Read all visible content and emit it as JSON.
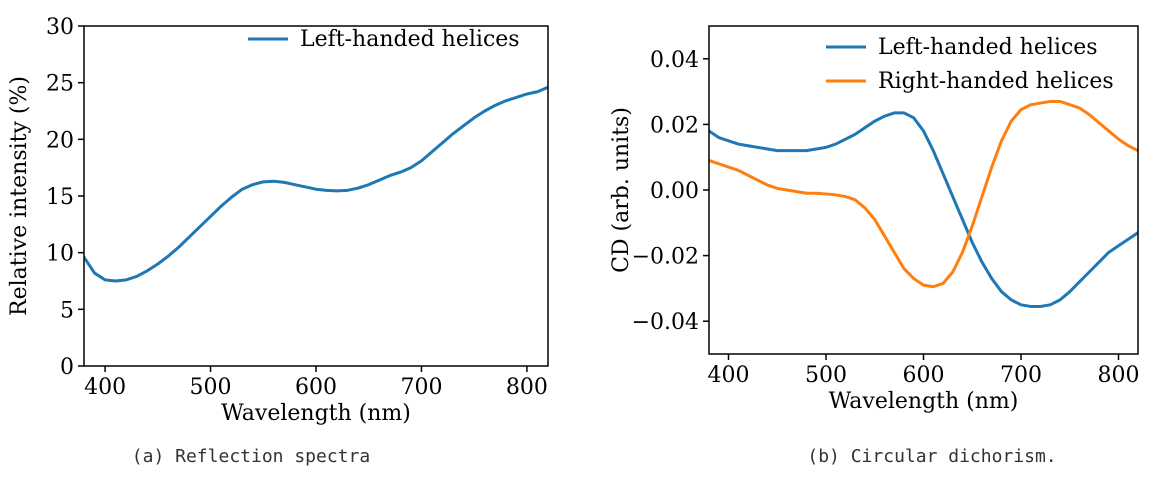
{
  "chart_data": [
    {
      "type": "line",
      "caption": "(a) Reflection spectra",
      "title": "",
      "xlabel": "Wavelength (nm)",
      "ylabel": "Relative intensity (%)",
      "xlim": [
        380,
        820
      ],
      "ylim": [
        0,
        30
      ],
      "xticks": [
        400,
        500,
        600,
        700,
        800
      ],
      "yticks": [
        0,
        5,
        10,
        15,
        20,
        25,
        30
      ],
      "ytick_labels": [
        "0",
        "5",
        "10",
        "15",
        "20",
        "25",
        "30"
      ],
      "grid": false,
      "legend_position": "top-right",
      "series": [
        {
          "name": "Left-handed helices",
          "color": "#1f77b4",
          "x": [
            380,
            390,
            400,
            410,
            420,
            430,
            440,
            450,
            460,
            470,
            480,
            490,
            500,
            510,
            520,
            530,
            540,
            550,
            560,
            570,
            580,
            590,
            600,
            610,
            620,
            630,
            640,
            650,
            660,
            670,
            680,
            690,
            700,
            710,
            720,
            730,
            740,
            750,
            760,
            770,
            780,
            790,
            800,
            810,
            820
          ],
          "y": [
            9.6,
            8.2,
            7.6,
            7.5,
            7.6,
            7.9,
            8.4,
            9.0,
            9.7,
            10.5,
            11.4,
            12.3,
            13.2,
            14.1,
            14.9,
            15.6,
            16.0,
            16.25,
            16.3,
            16.2,
            16.0,
            15.8,
            15.6,
            15.5,
            15.45,
            15.5,
            15.7,
            16.0,
            16.4,
            16.8,
            17.1,
            17.5,
            18.1,
            18.9,
            19.7,
            20.5,
            21.2,
            21.9,
            22.5,
            23.0,
            23.4,
            23.7,
            24.0,
            24.2,
            24.6
          ]
        }
      ]
    },
    {
      "type": "line",
      "caption": "(b) Circular dichorism.",
      "title": "",
      "xlabel": "Wavelength (nm)",
      "ylabel": "CD (arb. units)",
      "xlim": [
        380,
        820
      ],
      "ylim": [
        -0.05,
        0.05
      ],
      "xticks": [
        400,
        500,
        600,
        700,
        800
      ],
      "yticks": [
        -0.04,
        -0.02,
        0.0,
        0.02,
        0.04
      ],
      "ytick_labels": [
        "−0.04",
        "−0.02",
        "0.00",
        "0.02",
        "0.04"
      ],
      "grid": false,
      "legend_position": "top-right",
      "series": [
        {
          "name": "Left-handed helices",
          "color": "#1f77b4",
          "x": [
            380,
            390,
            400,
            410,
            420,
            430,
            440,
            450,
            460,
            470,
            480,
            490,
            500,
            510,
            520,
            530,
            540,
            550,
            560,
            570,
            580,
            590,
            600,
            610,
            620,
            630,
            640,
            650,
            660,
            670,
            680,
            690,
            700,
            710,
            720,
            730,
            740,
            750,
            760,
            770,
            780,
            790,
            800,
            810,
            820
          ],
          "y": [
            0.018,
            0.016,
            0.015,
            0.014,
            0.0135,
            0.013,
            0.0125,
            0.012,
            0.012,
            0.012,
            0.012,
            0.0125,
            0.013,
            0.014,
            0.0155,
            0.017,
            0.019,
            0.021,
            0.0225,
            0.0235,
            0.0235,
            0.022,
            0.018,
            0.012,
            0.005,
            -0.002,
            -0.009,
            -0.016,
            -0.022,
            -0.027,
            -0.031,
            -0.0335,
            -0.035,
            -0.0355,
            -0.0355,
            -0.035,
            -0.0335,
            -0.031,
            -0.028,
            -0.025,
            -0.022,
            -0.019,
            -0.017,
            -0.015,
            -0.013
          ]
        },
        {
          "name": "Right-handed helices",
          "color": "#ff7f0e",
          "x": [
            380,
            390,
            400,
            410,
            420,
            430,
            440,
            450,
            460,
            470,
            480,
            490,
            500,
            510,
            520,
            530,
            540,
            550,
            560,
            570,
            580,
            590,
            600,
            610,
            620,
            630,
            640,
            650,
            660,
            670,
            680,
            690,
            700,
            710,
            720,
            730,
            740,
            750,
            760,
            770,
            780,
            790,
            800,
            810,
            820
          ],
          "y": [
            0.009,
            0.008,
            0.007,
            0.006,
            0.0045,
            0.003,
            0.0015,
            0.0005,
            0.0,
            -0.0005,
            -0.001,
            -0.001,
            -0.0012,
            -0.0015,
            -0.002,
            -0.003,
            -0.0055,
            -0.009,
            -0.014,
            -0.019,
            -0.024,
            -0.027,
            -0.029,
            -0.0295,
            -0.0285,
            -0.025,
            -0.019,
            -0.011,
            -0.002,
            0.007,
            0.015,
            0.021,
            0.0245,
            0.026,
            0.0265,
            0.027,
            0.027,
            0.026,
            0.025,
            0.023,
            0.0205,
            0.018,
            0.0155,
            0.0135,
            0.012
          ]
        }
      ]
    }
  ]
}
